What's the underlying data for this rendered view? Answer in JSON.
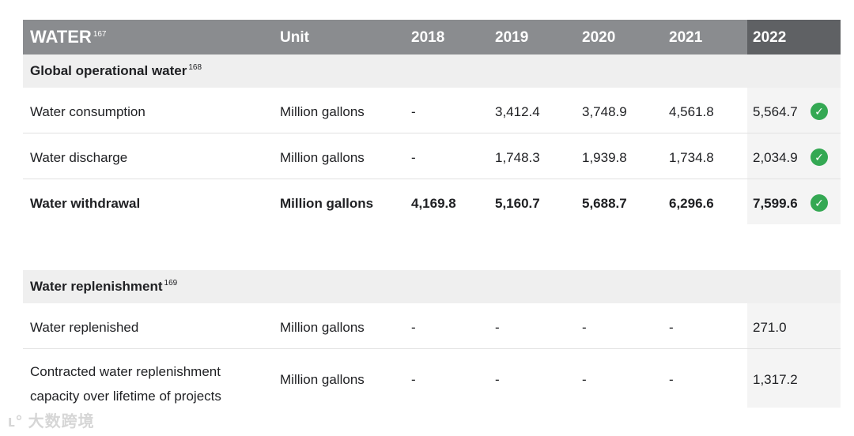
{
  "header": {
    "title": "WATER",
    "title_sup": "167",
    "unit": "Unit",
    "years": [
      "2018",
      "2019",
      "2020",
      "2021",
      "2022"
    ]
  },
  "section1": {
    "title": "Global operational water",
    "title_sup": "168",
    "rows": [
      {
        "label": "Water consumption",
        "unit": "Million gallons",
        "v2018": "-",
        "v2019": "3,412.4",
        "v2020": "3,748.9",
        "v2021": "4,561.8",
        "v2022": "5,564.7",
        "verified": true
      },
      {
        "label": "Water discharge",
        "unit": "Million gallons",
        "v2018": "-",
        "v2019": "1,748.3",
        "v2020": "1,939.8",
        "v2021": "1,734.8",
        "v2022": "2,034.9",
        "verified": true
      },
      {
        "label": "Water withdrawal",
        "unit": "Million gallons",
        "v2018": "4,169.8",
        "v2019": "5,160.7",
        "v2020": "5,688.7",
        "v2021": "6,296.6",
        "v2022": "7,599.6",
        "verified": true
      }
    ]
  },
  "section2": {
    "title": "Water replenishment",
    "title_sup": "169",
    "rows": [
      {
        "label": "Water replenished",
        "unit": "Million gallons",
        "v2018": "-",
        "v2019": "-",
        "v2020": "-",
        "v2021": "-",
        "v2022": "271.0"
      },
      {
        "label_line1": "Contracted water replenishment",
        "label_line2": "capacity over lifetime of projects",
        "unit": "Million gallons",
        "v2018": "-",
        "v2019": "-",
        "v2020": "-",
        "v2021": "-",
        "v2022": "1,317.2"
      }
    ]
  },
  "icons": {
    "check": "check-circle-icon",
    "check_color": "#34a853"
  },
  "watermark": "大数跨境"
}
